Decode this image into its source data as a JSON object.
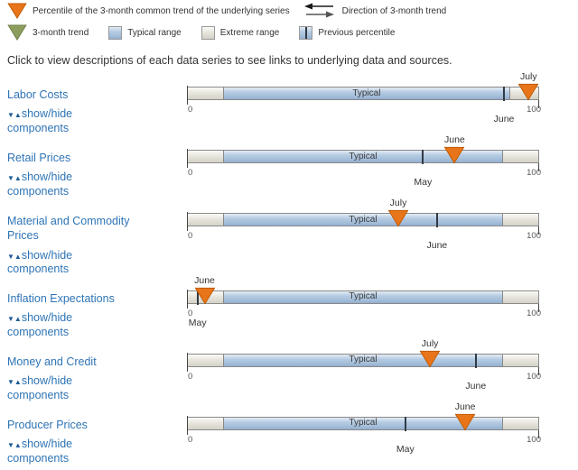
{
  "legend": {
    "percentile_label": "Percentile of the 3-month common trend of the underlying series",
    "direction_label": "Direction of 3-month trend",
    "trend_label": "3-month trend",
    "typical_label": "Typical range",
    "extreme_label": "Extreme range",
    "previous_label": "Previous percentile"
  },
  "description": "Click to view descriptions of each data series to see links to underlying data and sources.",
  "show_hide": {
    "glyphs": "▼▲",
    "label": "show/hide components"
  },
  "colors": {
    "marker_orange": "#E8751A",
    "marker_orange_border": "#C05A00",
    "trend_green": "#8C9E5E",
    "trend_green_border": "#6D7D44",
    "typical_blue": "#A9C2DC",
    "extreme_gray": "#DEDCD3",
    "previous_line": "#2F3A45",
    "link_blue": "#2E74B5"
  },
  "chart_data": {
    "type": "bar",
    "orientation": "horizontal",
    "xlim": [
      0,
      100
    ],
    "axis_ticks": [
      "0",
      "100"
    ],
    "bar_segment_label": "Typical",
    "legend_position": "top",
    "categories": [
      "Labor Costs",
      "Retail Prices",
      "Material and Commodity Prices",
      "Inflation Expectations",
      "Money and Credit",
      "Producer Prices"
    ],
    "rows": [
      {
        "name": "Labor Costs",
        "current": {
          "month": "July",
          "percentile": 97
        },
        "previous": {
          "month": "June",
          "percentile": 90
        },
        "typical_range": [
          10,
          92
        ],
        "extreme_range": [
          0,
          100
        ]
      },
      {
        "name": "Retail Prices",
        "current": {
          "month": "June",
          "percentile": 76
        },
        "previous": {
          "month": "May",
          "percentile": 67
        },
        "typical_range": [
          10,
          90
        ],
        "extreme_range": [
          0,
          100
        ]
      },
      {
        "name": "Material and Commodity Prices",
        "current": {
          "month": "July",
          "percentile": 60
        },
        "previous": {
          "month": "June",
          "percentile": 71
        },
        "typical_range": [
          10,
          90
        ],
        "extreme_range": [
          0,
          100
        ]
      },
      {
        "name": "Inflation Expectations",
        "current": {
          "month": "June",
          "percentile": 5
        },
        "previous": {
          "month": "May",
          "percentile": 3
        },
        "typical_range": [
          10,
          90
        ],
        "extreme_range": [
          0,
          100
        ]
      },
      {
        "name": "Money and Credit",
        "current": {
          "month": "July",
          "percentile": 69
        },
        "previous": {
          "month": "June",
          "percentile": 82
        },
        "typical_range": [
          10,
          90
        ],
        "extreme_range": [
          0,
          100
        ]
      },
      {
        "name": "Producer Prices",
        "current": {
          "month": "June",
          "percentile": 79
        },
        "previous": {
          "month": "May",
          "percentile": 62
        },
        "typical_range": [
          10,
          90
        ],
        "extreme_range": [
          0,
          100
        ]
      }
    ]
  }
}
